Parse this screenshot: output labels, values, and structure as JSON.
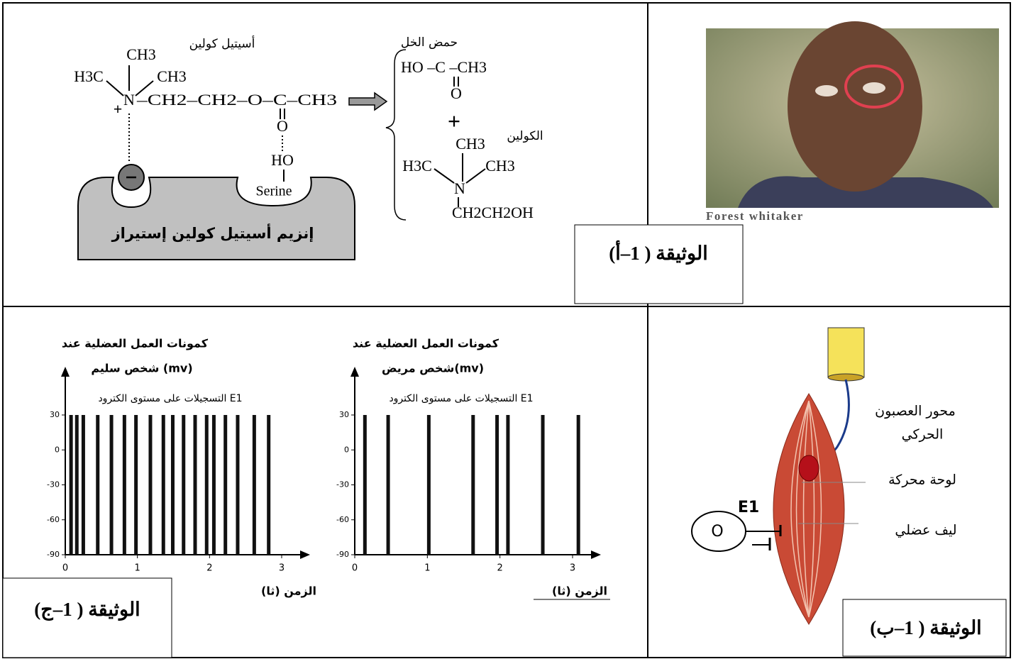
{
  "panel_a": {
    "title": "أسيتيل كولين",
    "acetylcholine": {
      "top_methyl": "CH3",
      "left_methyl": "H3C",
      "right_methyl": "CH3",
      "nitrogen": "N",
      "charge": "+",
      "chain": "–CH2–CH2–O–C–CH3",
      "carbonyl_o": "O",
      "serine_ho": "HO",
      "serine": "Serine"
    },
    "enzyme": "إنزيم أسيتيل كولين إستيراز",
    "acetic_acid": {
      "name": "حمض الخل",
      "formula": "HO –C –CH3",
      "carbonyl_o": "O"
    },
    "plus": "+",
    "choline": {
      "name": "الكولين",
      "top_methyl": "CH3",
      "left_methyl": "H3C",
      "right_methyl": "CH3",
      "nitrogen": "N",
      "chain": "CH2CH2OH"
    },
    "label": "الوثيقة ( 1–أ)"
  },
  "photo": {
    "caption": "Forest whitaker"
  },
  "panel_b": {
    "axon_line1": "محور العصبون",
    "axon_line2": "الحركي",
    "end_plate": "لوحة محركة",
    "fiber": "ليف عضلي",
    "electrode": "E1",
    "oscilloscope": "O",
    "label": "الوثيقة ( 1–ب)"
  },
  "charts": [
    {
      "type": "spikes",
      "title": "كمونات العمل العضلية عند",
      "subtitle": "شخص سليم (mv)",
      "annotation": "التسجيلات على مستوى الكترود E1",
      "x_label": "الزمن (ثا)",
      "x": [
        0.08,
        0.16,
        0.25,
        0.45,
        0.64,
        0.82,
        0.98,
        1.18,
        1.36,
        1.49,
        1.64,
        1.8,
        1.96,
        2.06,
        2.22,
        2.39,
        2.62,
        2.82
      ],
      "values": [
        30,
        30,
        30,
        30,
        30,
        30,
        30,
        30,
        30,
        30,
        30,
        30,
        30,
        30,
        30,
        30,
        30,
        30
      ],
      "xlim": [
        0,
        3
      ],
      "ylim": [
        -90,
        30
      ],
      "xticks": [
        0,
        1,
        2,
        3
      ],
      "yticks": [
        30,
        0,
        -30,
        -60,
        -90
      ],
      "color": "#111111"
    },
    {
      "type": "spikes",
      "title": "كمونات العمل العضلية عند",
      "subtitle": "شخص مريض(mv)",
      "annotation": "التسجيلات على مستوى الكترود E1",
      "x_label": "الزمن (ثا)",
      "x": [
        0.14,
        0.46,
        1.02,
        1.63,
        1.96,
        2.11,
        2.59,
        3.08
      ],
      "values": [
        30,
        30,
        30,
        30,
        30,
        30,
        30,
        30
      ],
      "xlim": [
        0,
        3
      ],
      "ylim": [
        -90,
        30
      ],
      "xticks": [
        0,
        1,
        2,
        3
      ],
      "yticks": [
        30,
        0,
        -30,
        -60,
        -90
      ],
      "color": "#111111"
    }
  ],
  "panel_c": {
    "label": "الوثيقة ( 1–ج)"
  }
}
